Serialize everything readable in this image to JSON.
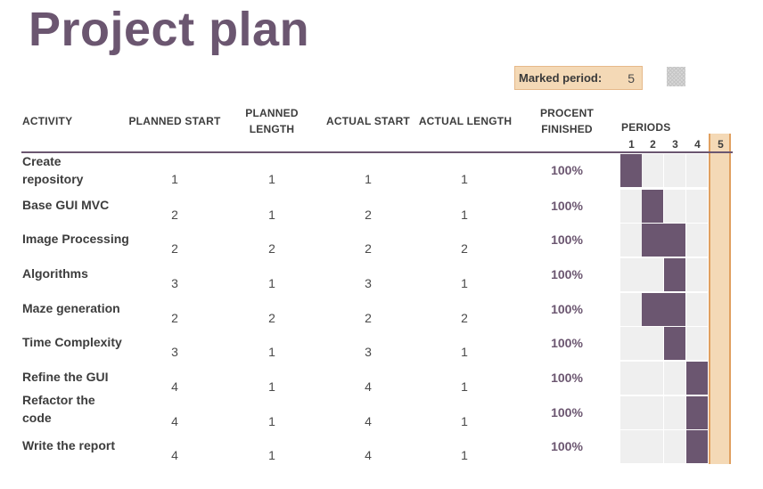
{
  "title": "Project plan",
  "marked": {
    "label": "Marked period:",
    "value": "5"
  },
  "headers": {
    "activity": "ACTIVITY",
    "planned_start": "PLANNED START",
    "planned_length_1": "PLANNED",
    "planned_length_2": "LENGTH",
    "actual_start": "ACTUAL START",
    "actual_length": "ACTUAL LENGTH",
    "percent_1": "PROCENT",
    "percent_2": "FINISHED",
    "periods": "PERIODS"
  },
  "periods": [
    "1",
    "2",
    "3",
    "4",
    "5"
  ],
  "colors": {
    "accent": "#6b5670",
    "highlight": "#f4d9b6",
    "empty": "#efefef"
  },
  "rows": [
    {
      "activity": "Create repository",
      "ps": "1",
      "pl": "1",
      "as": "1",
      "al": "1",
      "pct": "100%"
    },
    {
      "activity": "Base GUI MVC",
      "ps": "2",
      "pl": "1",
      "as": "2",
      "al": "1",
      "pct": "100%"
    },
    {
      "activity": "Image Processing",
      "ps": "2",
      "pl": "2",
      "as": "2",
      "al": "2",
      "pct": "100%"
    },
    {
      "activity": "Algorithms",
      "ps": "3",
      "pl": "1",
      "as": "3",
      "al": "1",
      "pct": "100%"
    },
    {
      "activity": "Maze generation",
      "ps": "2",
      "pl": "2",
      "as": "2",
      "al": "2",
      "pct": "100%"
    },
    {
      "activity": "Time Complexity",
      "ps": "3",
      "pl": "1",
      "as": "3",
      "al": "1",
      "pct": "100%"
    },
    {
      "activity": "Refine the GUI",
      "ps": "4",
      "pl": "1",
      "as": "4",
      "al": "1",
      "pct": "100%"
    },
    {
      "activity": "Refactor the code",
      "ps": "4",
      "pl": "1",
      "as": "4",
      "al": "1",
      "pct": "100%"
    },
    {
      "activity": "Write the report",
      "ps": "4",
      "pl": "1",
      "as": "4",
      "al": "1",
      "pct": "100%"
    }
  ]
}
